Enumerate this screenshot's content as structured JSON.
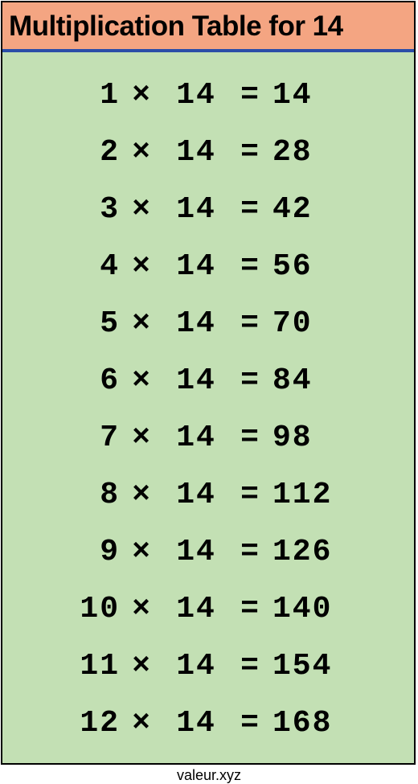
{
  "header": {
    "title": "Multiplication Table for 14",
    "background_color": "#f4a582",
    "title_fontsize": 35,
    "title_color": "#000000"
  },
  "divider": {
    "color": "#2b4ea8",
    "height": 4
  },
  "table": {
    "type": "table",
    "background_color": "#c3e0b4",
    "font_family": "Courier New",
    "font_size": 38,
    "text_color": "#000000",
    "operator": "×",
    "equals": "=",
    "multiplicand": 14,
    "rows": [
      {
        "a": "1",
        "b": "14",
        "result": "14"
      },
      {
        "a": "2",
        "b": "14",
        "result": "28"
      },
      {
        "a": "3",
        "b": "14",
        "result": "42"
      },
      {
        "a": "4",
        "b": "14",
        "result": "56"
      },
      {
        "a": "5",
        "b": "14",
        "result": "70"
      },
      {
        "a": "6",
        "b": "14",
        "result": "84"
      },
      {
        "a": "7",
        "b": "14",
        "result": "98"
      },
      {
        "a": "8",
        "b": "14",
        "result": "112"
      },
      {
        "a": "9",
        "b": "14",
        "result": "126"
      },
      {
        "a": "10",
        "b": "14",
        "result": "140"
      },
      {
        "a": "11",
        "b": "14",
        "result": "154"
      },
      {
        "a": "12",
        "b": "14",
        "result": "168"
      }
    ]
  },
  "footer": {
    "text": "valeur.xyz",
    "font_size": 18,
    "color": "#000000"
  },
  "border_color": "#000000"
}
